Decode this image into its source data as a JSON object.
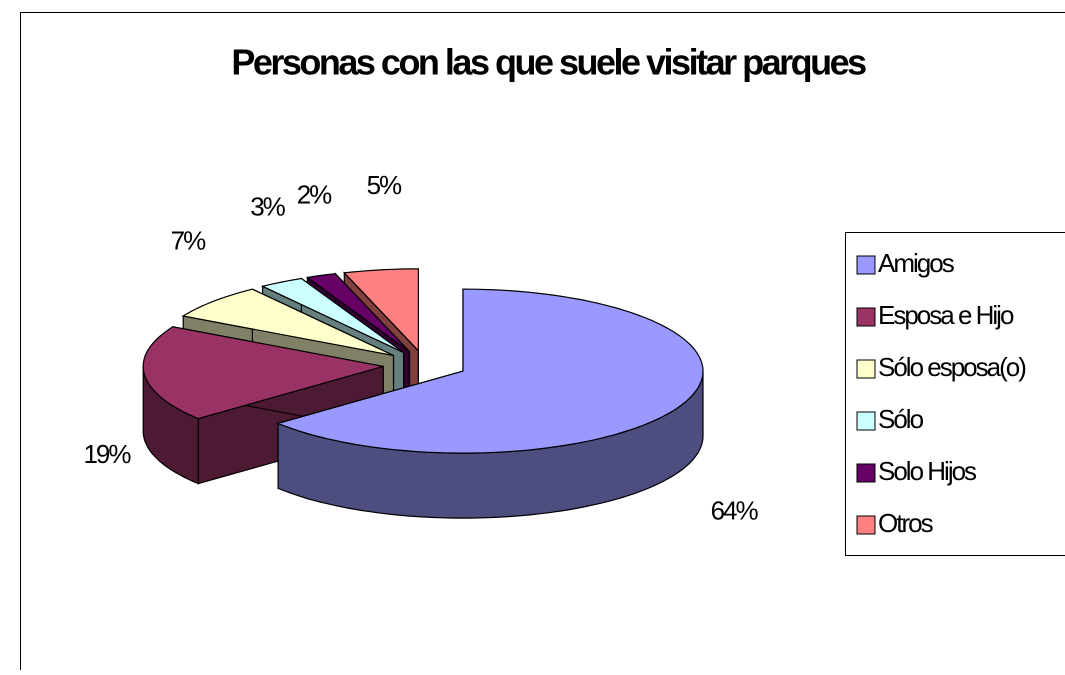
{
  "chart_data": {
    "type": "pie3d",
    "title": "Personas con las que suele visitar parques",
    "categories": [
      "Amigos",
      "Esposa e Hijo",
      "Sólo esposa(o)",
      "Sólo",
      "Solo Hijos",
      "Otros"
    ],
    "values": [
      64,
      19,
      7,
      3,
      2,
      5
    ],
    "value_labels": [
      "64%",
      "19%",
      "7%",
      "3%",
      "2%",
      "5%"
    ],
    "colors": [
      "#9999ff",
      "#993366",
      "#ffffcc",
      "#ccffff",
      "#660066",
      "#ff8080"
    ],
    "legend": "right"
  }
}
